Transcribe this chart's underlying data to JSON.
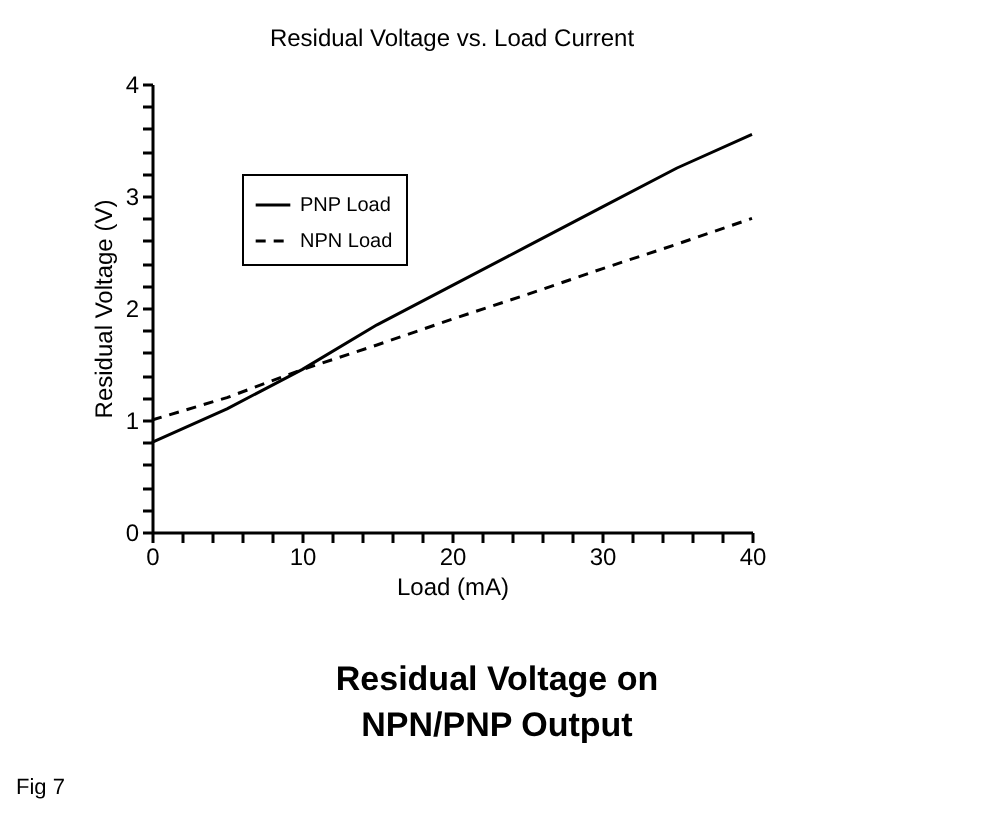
{
  "chart_data": {
    "type": "line",
    "title": "Residual Voltage vs. Load Current",
    "xlabel": "Load (mA)",
    "ylabel": "Residual Voltage (V)",
    "x": [
      0,
      5,
      10,
      15,
      20,
      25,
      30,
      35,
      40
    ],
    "series": [
      {
        "name": "PNP Load",
        "color": "#000000",
        "line_style": "solid",
        "values": [
          0.8,
          1.1,
          1.45,
          1.85,
          2.2,
          2.55,
          2.9,
          3.25,
          3.55
        ]
      },
      {
        "name": "NPN Load",
        "color": "#000000",
        "line_style": "dashed",
        "values": [
          1.0,
          1.2,
          1.45,
          1.67,
          1.9,
          2.12,
          2.35,
          2.57,
          2.8
        ]
      }
    ],
    "xlim": [
      0,
      40
    ],
    "ylim": [
      0,
      4
    ],
    "xticks": [
      0,
      {
        "value": 2,
        "label": null
      },
      {
        "value": 4,
        "label": null
      },
      {
        "value": 6,
        "label": null
      },
      {
        "value": 8,
        "label": null
      },
      10,
      {
        "value": 12,
        "label": null
      },
      {
        "value": 14,
        "label": null
      },
      {
        "value": 16,
        "label": null
      },
      {
        "value": 18,
        "label": null
      },
      20,
      {
        "value": 22,
        "label": null
      },
      {
        "value": 24,
        "label": null
      },
      {
        "value": 26,
        "label": null
      },
      {
        "value": 28,
        "label": null
      },
      30,
      {
        "value": 32,
        "label": null
      },
      {
        "value": 34,
        "label": null
      },
      {
        "value": 36,
        "label": null
      },
      {
        "value": 38,
        "label": null
      },
      40
    ],
    "yticks": [
      0,
      {
        "value": 0.2,
        "label": null
      },
      {
        "value": 0.4,
        "label": null
      },
      {
        "value": 0.6,
        "label": null
      },
      {
        "value": 0.8,
        "label": null
      },
      1,
      {
        "value": 1.2,
        "label": null
      },
      {
        "value": 1.4,
        "label": null
      },
      {
        "value": 1.6,
        "label": null
      },
      {
        "value": 1.8,
        "label": null
      },
      2,
      {
        "value": 2.2,
        "label": null
      },
      {
        "value": 2.4,
        "label": null
      },
      {
        "value": 2.6,
        "label": null
      },
      {
        "value": 2.8,
        "label": null
      },
      3,
      {
        "value": 3.2,
        "label": null
      },
      {
        "value": 3.4,
        "label": null
      },
      {
        "value": 3.6,
        "label": null
      },
      {
        "value": 3.8,
        "label": null
      },
      4
    ],
    "grid": false,
    "legend": "top left",
    "annotations": [
      "Residual Voltage on NPN/PNP Output",
      "Fig 7"
    ]
  }
}
